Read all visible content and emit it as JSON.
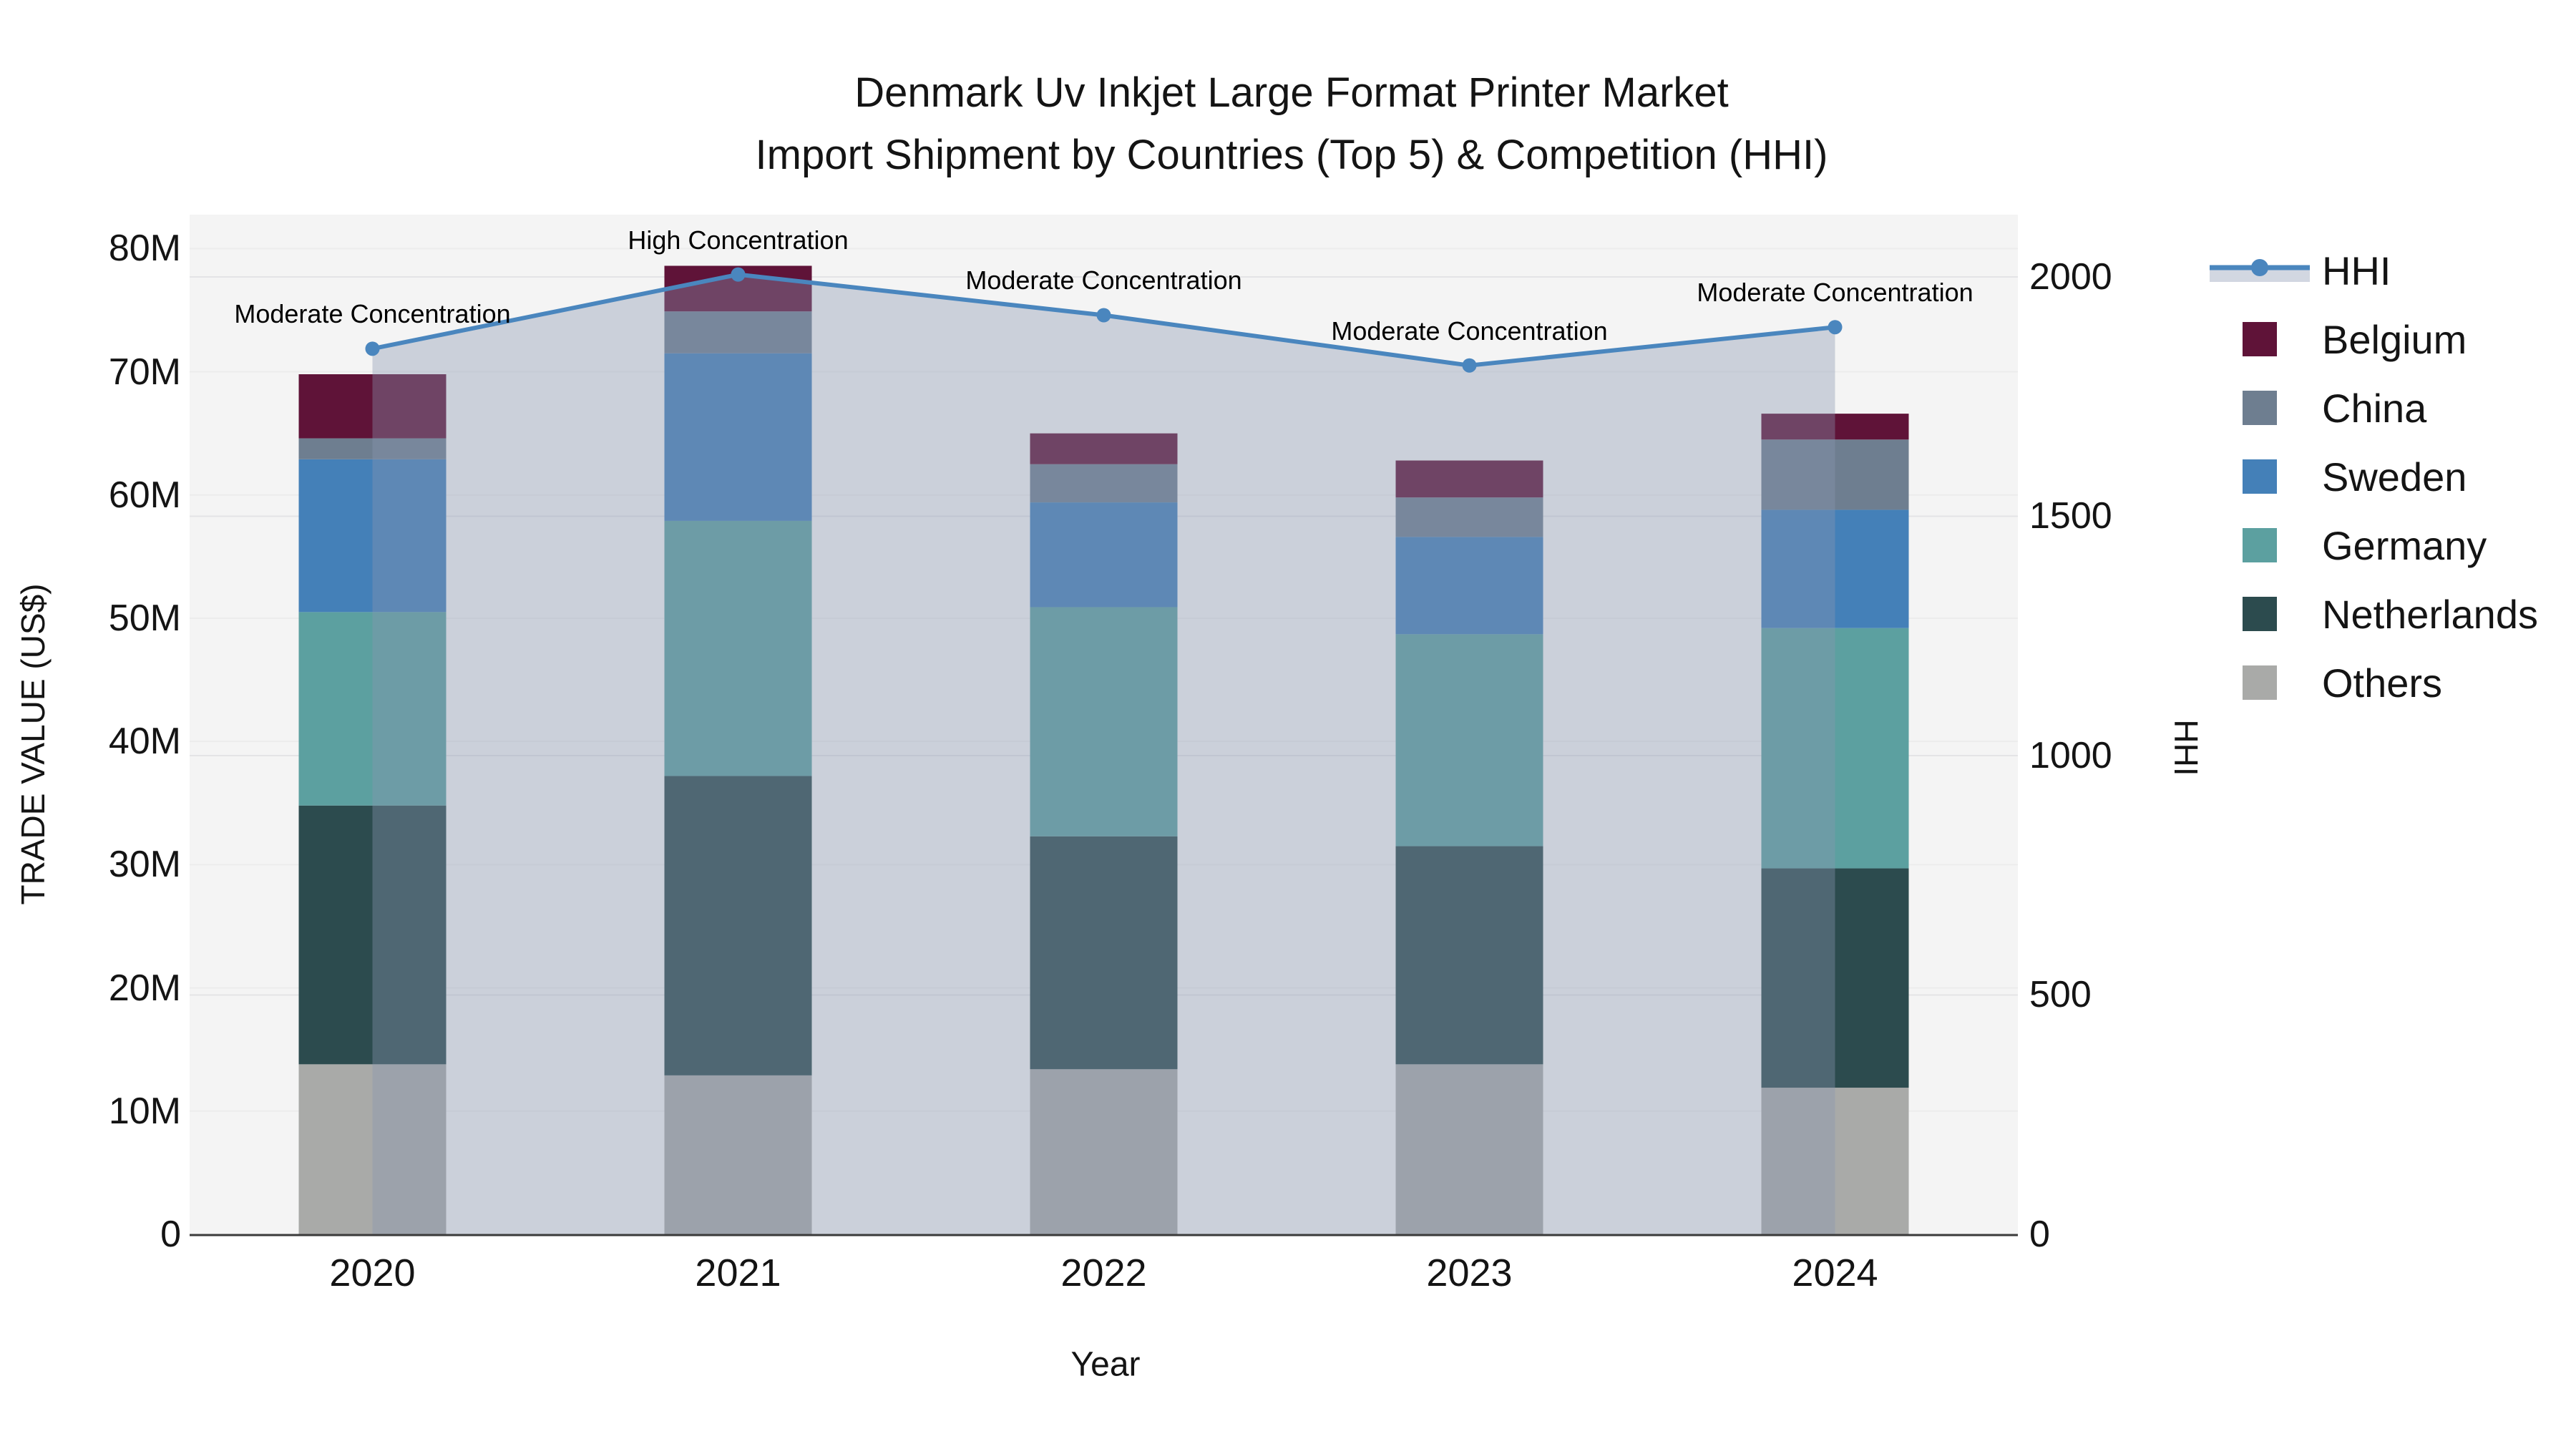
{
  "title": {
    "line1": "Denmark Uv Inkjet Large Format Printer Market",
    "line2": "Import Shipment by Countries (Top 5) & Competition (HHI)"
  },
  "axes": {
    "left": {
      "title": "TRADE VALUE (US$)",
      "tick_labels": [
        "0",
        "10M",
        "20M",
        "30M",
        "40M",
        "50M",
        "60M",
        "70M",
        "80M"
      ],
      "tick_values": [
        0,
        10,
        20,
        30,
        40,
        50,
        60,
        70,
        80
      ]
    },
    "right": {
      "title": "HHI",
      "tick_labels": [
        "0",
        "500",
        "1000",
        "1500",
        "2000"
      ],
      "tick_values": [
        0,
        500,
        1000,
        1500,
        2000
      ]
    },
    "x": {
      "title": "Year",
      "categories": [
        "2020",
        "2021",
        "2022",
        "2023",
        "2024"
      ]
    }
  },
  "annotations": [
    "Moderate Concentration",
    "High Concentration",
    "Moderate Concentration",
    "Moderate Concentration",
    "Moderate Concentration"
  ],
  "legend_items": [
    {
      "label": "HHI",
      "type": "line",
      "color": "#4a86be"
    },
    {
      "label": "Belgium",
      "type": "swatch",
      "color": "#5f1338"
    },
    {
      "label": "China",
      "type": "swatch",
      "color": "#6e7e90"
    },
    {
      "label": "Sweden",
      "type": "swatch",
      "color": "#4480b8"
    },
    {
      "label": "Germany",
      "type": "swatch",
      "color": "#5ca0a0"
    },
    {
      "label": "Netherlands",
      "type": "swatch",
      "color": "#2c4b4e"
    },
    {
      "label": "Others",
      "type": "swatch",
      "color": "#a9aaa8"
    }
  ],
  "chart_data": {
    "type": "bar",
    "subtype": "stacked-bars-with-line",
    "title": "Denmark Uv Inkjet Large Format Printer Market — Import Shipment by Countries (Top 5) & Competition (HHI)",
    "categories": [
      "2020",
      "2021",
      "2022",
      "2023",
      "2024"
    ],
    "xlabel": "Year",
    "ylabel": "TRADE VALUE (US$)",
    "ylabel_right": "HHI",
    "bar_value_unit": "million US$",
    "series": [
      {
        "name": "Others",
        "color": "#a9aaa8",
        "values": [
          13.8,
          12.9,
          13.4,
          13.8,
          11.9
        ]
      },
      {
        "name": "Netherlands",
        "color": "#2c4b4e",
        "values": [
          21.0,
          24.3,
          18.9,
          17.7,
          17.8
        ]
      },
      {
        "name": "Germany",
        "color": "#5ca0a0",
        "values": [
          15.7,
          20.7,
          18.6,
          17.2,
          19.5
        ]
      },
      {
        "name": "Sweden",
        "color": "#4480b8",
        "values": [
          12.4,
          13.6,
          8.5,
          7.9,
          9.6
        ]
      },
      {
        "name": "China",
        "color": "#6e7e90",
        "values": [
          1.7,
          3.4,
          3.1,
          3.2,
          5.7
        ]
      },
      {
        "name": "Belgium",
        "color": "#5f1338",
        "values": [
          5.2,
          3.7,
          2.5,
          3.0,
          2.1
        ]
      }
    ],
    "stack_totals": [
      69.8,
      78.6,
      65.0,
      62.8,
      66.6
    ],
    "line_series": {
      "name": "HHI",
      "color": "#4a86be",
      "fill_color": "rgba(137,150,176,0.38)",
      "values": [
        1850,
        2005,
        1920,
        1815,
        1895
      ],
      "axis": "right"
    },
    "annotations_per_point": [
      "Moderate Concentration",
      "High Concentration",
      "Moderate Concentration",
      "Moderate Concentration",
      "Moderate Concentration"
    ],
    "ylim_left": [
      0,
      82.75
    ],
    "ylim_right": [
      0,
      2130
    ],
    "grid": true,
    "legend_position": "right",
    "plot_background": "#f4f4f4"
  },
  "colors": {
    "figure_background": "#ffffff",
    "plot_background": "#f4f4f4",
    "gridline_left": "#ececec",
    "gridline_right": "#e4e4e6",
    "axis_line": "#3a3a3a",
    "hhi_line": "#4a86be",
    "hhi_fill": "rgba(137,150,176,0.38)",
    "text": "#141414"
  }
}
